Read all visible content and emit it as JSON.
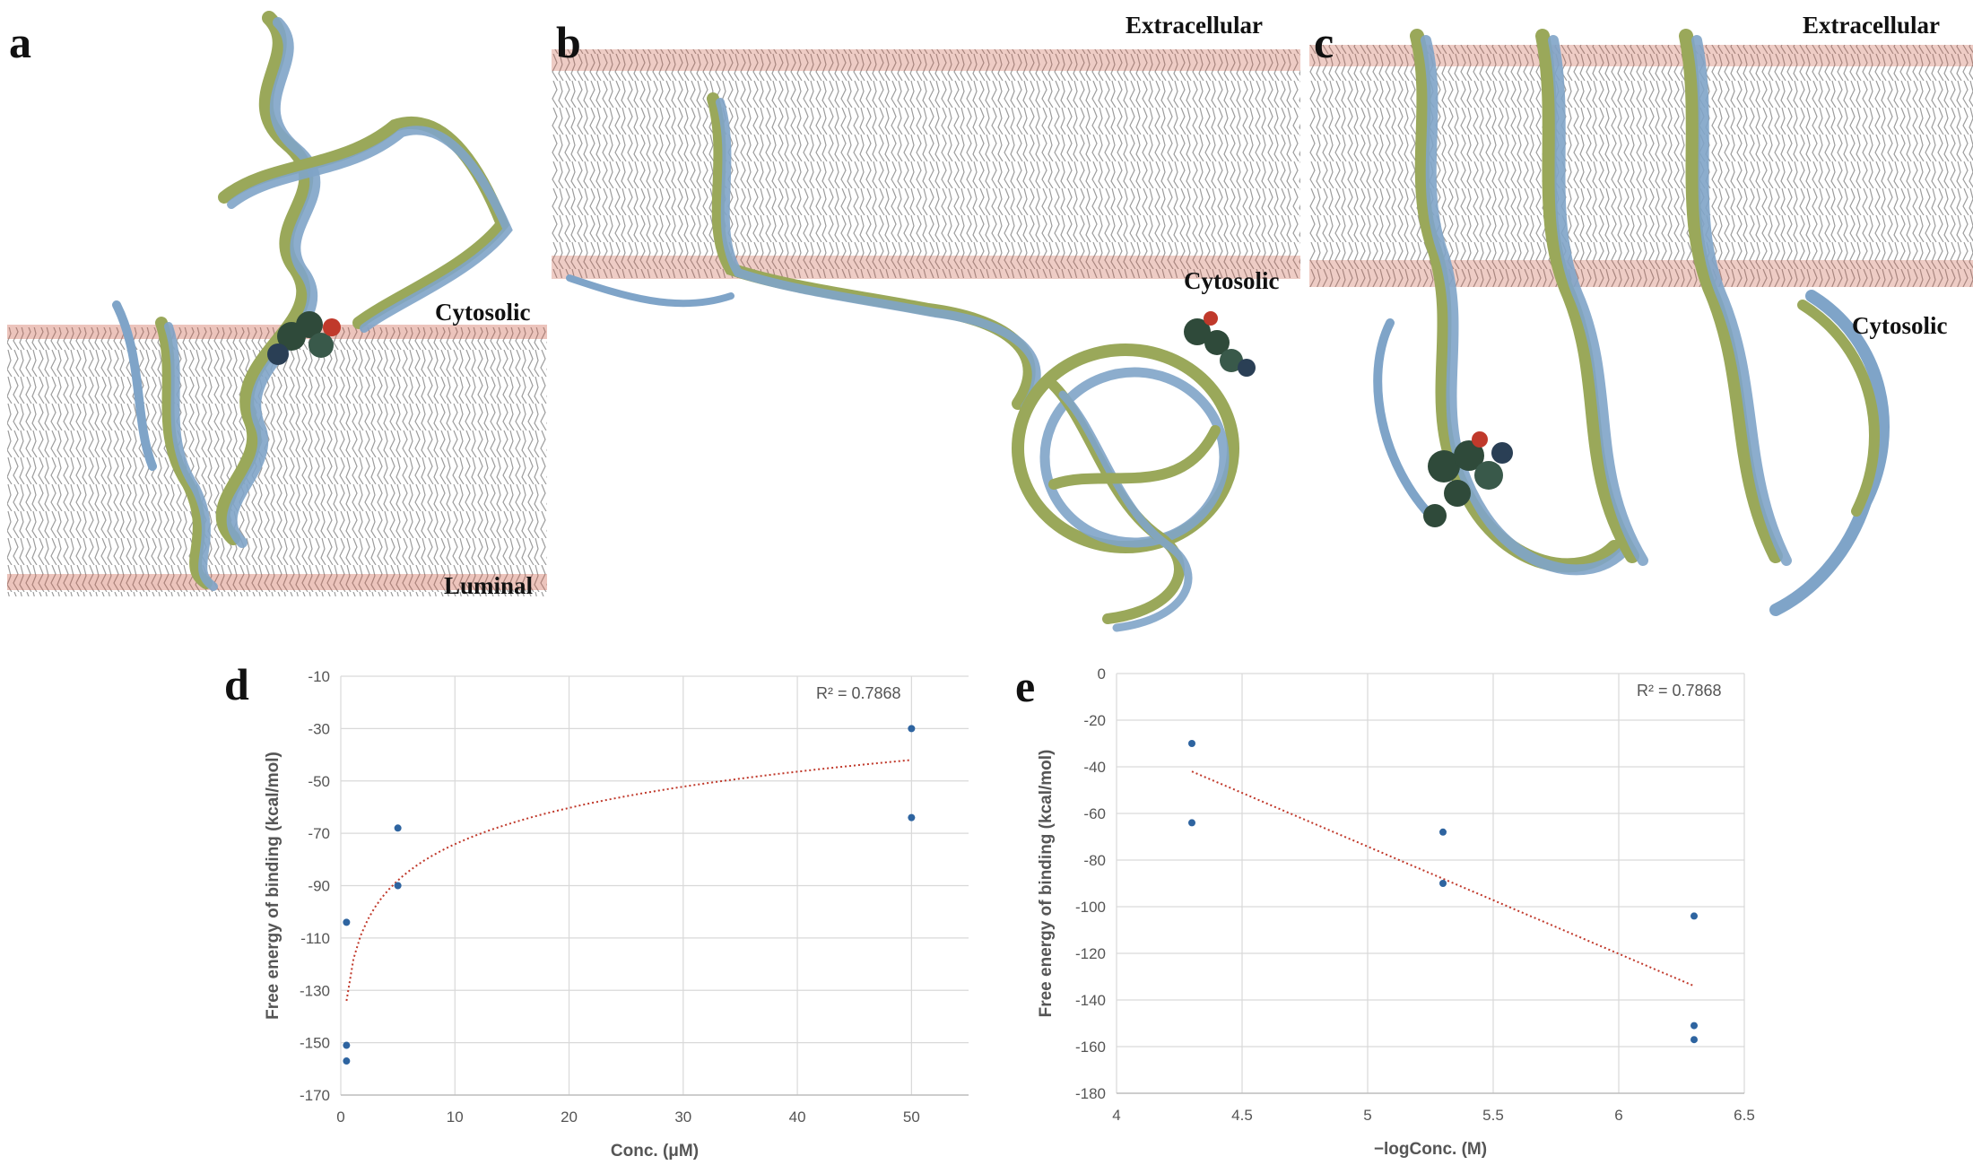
{
  "colors": {
    "protein_a": "#7fa4c8",
    "protein_b": "#9aa85a",
    "lipid_tail": "#7a7a7a",
    "lipid_head": "#c8553f",
    "ligand": "#2f4a3a",
    "point": "#2e64a0",
    "trend": "#c0392b",
    "grid": "#d9d9d9"
  },
  "panels": {
    "a": {
      "letter": "a",
      "labels": {
        "top": "Cytosolic",
        "bottom": "Luminal"
      }
    },
    "b": {
      "letter": "b",
      "labels": {
        "top": "Extracellular",
        "bottom": "Cytosolic"
      }
    },
    "c": {
      "letter": "c",
      "labels": {
        "top": "Extracellular",
        "bottom": "Cytosolic"
      }
    }
  },
  "chart_data": [
    {
      "panel": "d",
      "type": "scatter",
      "xlabel": "Conc. (μM)",
      "ylabel": "Free energy of binding (kcal/mol)",
      "xlim": [
        0,
        55
      ],
      "ylim": [
        -170,
        -10
      ],
      "xticks": [
        0,
        10,
        20,
        30,
        40,
        50
      ],
      "yticks": [
        -10,
        -30,
        -50,
        -70,
        -90,
        -110,
        -130,
        -150,
        -170
      ],
      "points": [
        {
          "x": 0.5,
          "y": -104
        },
        {
          "x": 0.5,
          "y": -151
        },
        {
          "x": 0.5,
          "y": -157
        },
        {
          "x": 5,
          "y": -68
        },
        {
          "x": 5,
          "y": -90
        },
        {
          "x": 50,
          "y": -30
        },
        {
          "x": 50,
          "y": -64
        }
      ],
      "trendline": {
        "type": "logarithmic",
        "from_x": 0.5,
        "to_x": 50,
        "y_at_from": -134,
        "y_at_to": -42
      },
      "r_squared": "R² = 0.7868",
      "grid": true
    },
    {
      "panel": "e",
      "type": "scatter",
      "xlabel": "−logConc. (M)",
      "ylabel": "Free energy of binding (kcal/mol)",
      "xlim": [
        4,
        6.5
      ],
      "ylim": [
        -180,
        0
      ],
      "xticks": [
        4,
        4.5,
        5,
        5.5,
        6,
        6.5
      ],
      "yticks": [
        0,
        -20,
        -40,
        -60,
        -80,
        -100,
        -120,
        -140,
        -160,
        -180
      ],
      "points": [
        {
          "x": 4.3,
          "y": -30
        },
        {
          "x": 4.3,
          "y": -64
        },
        {
          "x": 5.3,
          "y": -68
        },
        {
          "x": 5.3,
          "y": -90
        },
        {
          "x": 6.3,
          "y": -104
        },
        {
          "x": 6.3,
          "y": -151
        },
        {
          "x": 6.3,
          "y": -157
        }
      ],
      "trendline": {
        "type": "linear",
        "from_x": 4.3,
        "to_x": 6.3,
        "y_at_from": -42,
        "y_at_to": -134
      },
      "r_squared": "R² = 0.7868",
      "grid": true
    }
  ]
}
